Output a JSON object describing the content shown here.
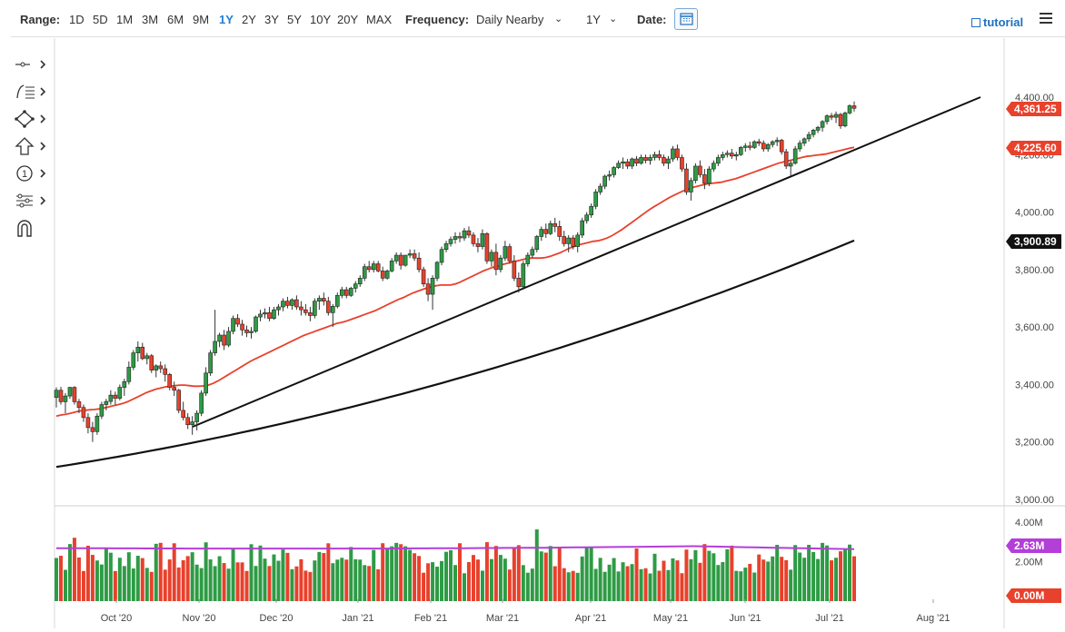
{
  "toolbar": {
    "range_label": "Range:",
    "ranges": [
      "1D",
      "5D",
      "1M",
      "3M",
      "6M",
      "9M",
      "1Y",
      "2Y",
      "3Y",
      "5Y",
      "10Y",
      "20Y",
      "MAX"
    ],
    "active_range": "1Y",
    "frequency_label": "Frequency:",
    "frequency_value": "Daily Nearby",
    "period_value": "1Y",
    "date_label": "Date:",
    "tutorial_label": "tutorial"
  },
  "tools": [
    {
      "name": "crosshair-tool-icon"
    },
    {
      "name": "fibonacci-tool-icon"
    },
    {
      "name": "shapes-tool-icon"
    },
    {
      "name": "arrow-up-tool-icon"
    },
    {
      "name": "annotation-tool-icon",
      "glyph": "1"
    },
    {
      "name": "indicator-settings-icon"
    },
    {
      "name": "magnet-icon"
    }
  ],
  "colors": {
    "up_candle": "#2e9b45",
    "down_candle": "#e8412c",
    "ma_fast": "#e8412c",
    "ma_slow": "#111111",
    "volume_ma": "#b43ed8",
    "price_tag": "#e8412c",
    "dark_tag": "#111111",
    "volume_tag": "#b43ed8"
  },
  "chart_data": {
    "type": "candlestick",
    "x_axis_labels": [
      "Oct '20",
      "Nov '20",
      "Dec '20",
      "Jan '21",
      "Feb '21",
      "Mar '21",
      "Apr '21",
      "May '21",
      "Jun '21",
      "Jul '21",
      "Aug '21"
    ],
    "y_axis_labels": [
      "4,400.00",
      "4,200.00",
      "4,000.00",
      "3,800.00",
      "3,600.00",
      "3,400.00",
      "3,200.00",
      "3,000.00"
    ],
    "y_range": [
      3000,
      4400
    ],
    "ohlc": [
      [
        3355,
        3390,
        3320,
        3380
      ],
      [
        3380,
        3392,
        3330,
        3340
      ],
      [
        3340,
        3370,
        3300,
        3360
      ],
      [
        3360,
        3392,
        3350,
        3390
      ],
      [
        3390,
        3394,
        3330,
        3340
      ],
      [
        3340,
        3350,
        3300,
        3320
      ],
      [
        3320,
        3330,
        3270,
        3285
      ],
      [
        3285,
        3300,
        3230,
        3250
      ],
      [
        3250,
        3270,
        3200,
        3236
      ],
      [
        3236,
        3300,
        3225,
        3290
      ],
      [
        3290,
        3340,
        3280,
        3330
      ],
      [
        3330,
        3350,
        3310,
        3341
      ],
      [
        3341,
        3380,
        3330,
        3363
      ],
      [
        3363,
        3375,
        3330,
        3352
      ],
      [
        3352,
        3400,
        3345,
        3390
      ],
      [
        3390,
        3420,
        3360,
        3410
      ],
      [
        3410,
        3480,
        3400,
        3460
      ],
      [
        3460,
        3520,
        3450,
        3510
      ],
      [
        3510,
        3550,
        3480,
        3530
      ],
      [
        3530,
        3545,
        3485,
        3490
      ],
      [
        3490,
        3510,
        3470,
        3500
      ],
      [
        3500,
        3506,
        3440,
        3450
      ],
      [
        3450,
        3470,
        3425,
        3465
      ],
      [
        3465,
        3480,
        3440,
        3455
      ],
      [
        3455,
        3470,
        3410,
        3435
      ],
      [
        3435,
        3440,
        3380,
        3390
      ],
      [
        3390,
        3410,
        3360,
        3380
      ],
      [
        3380,
        3385,
        3300,
        3310
      ],
      [
        3310,
        3340,
        3275,
        3285
      ],
      [
        3285,
        3300,
        3245,
        3260
      ],
      [
        3260,
        3290,
        3225,
        3270
      ],
      [
        3270,
        3310,
        3240,
        3300
      ],
      [
        3300,
        3380,
        3290,
        3370
      ],
      [
        3370,
        3460,
        3360,
        3440
      ],
      [
        3440,
        3520,
        3430,
        3510
      ],
      [
        3510,
        3660,
        3500,
        3550
      ],
      [
        3550,
        3580,
        3530,
        3572
      ],
      [
        3572,
        3590,
        3520,
        3537
      ],
      [
        3537,
        3600,
        3530,
        3585
      ],
      [
        3585,
        3640,
        3575,
        3630
      ],
      [
        3630,
        3645,
        3600,
        3610
      ],
      [
        3610,
        3625,
        3570,
        3590
      ],
      [
        3590,
        3605,
        3565,
        3580
      ],
      [
        3580,
        3600,
        3560,
        3585
      ],
      [
        3585,
        3640,
        3580,
        3635
      ],
      [
        3635,
        3660,
        3620,
        3645
      ],
      [
        3645,
        3665,
        3630,
        3650
      ],
      [
        3650,
        3670,
        3620,
        3630
      ],
      [
        3630,
        3670,
        3625,
        3660
      ],
      [
        3660,
        3680,
        3640,
        3670
      ],
      [
        3670,
        3700,
        3655,
        3690
      ],
      [
        3690,
        3705,
        3665,
        3675
      ],
      [
        3675,
        3700,
        3660,
        3695
      ],
      [
        3695,
        3710,
        3660,
        3670
      ],
      [
        3670,
        3690,
        3640,
        3660
      ],
      [
        3660,
        3680,
        3640,
        3650
      ],
      [
        3650,
        3670,
        3620,
        3640
      ],
      [
        3640,
        3700,
        3630,
        3690
      ],
      [
        3690,
        3710,
        3660,
        3700
      ],
      [
        3700,
        3720,
        3675,
        3690
      ],
      [
        3690,
        3705,
        3640,
        3650
      ],
      [
        3650,
        3680,
        3600,
        3672
      ],
      [
        3672,
        3720,
        3665,
        3710
      ],
      [
        3710,
        3740,
        3700,
        3730
      ],
      [
        3730,
        3740,
        3700,
        3710
      ],
      [
        3710,
        3740,
        3705,
        3735
      ],
      [
        3735,
        3760,
        3720,
        3750
      ],
      [
        3750,
        3780,
        3740,
        3770
      ],
      [
        3770,
        3820,
        3760,
        3810
      ],
      [
        3810,
        3830,
        3790,
        3800
      ],
      [
        3800,
        3830,
        3790,
        3820
      ],
      [
        3820,
        3830,
        3790,
        3795
      ],
      [
        3795,
        3810,
        3760,
        3770
      ],
      [
        3770,
        3800,
        3765,
        3795
      ],
      [
        3795,
        3840,
        3790,
        3830
      ],
      [
        3830,
        3860,
        3820,
        3850
      ],
      [
        3850,
        3860,
        3800,
        3815
      ],
      [
        3815,
        3850,
        3810,
        3850
      ],
      [
        3850,
        3870,
        3840,
        3855
      ],
      [
        3855,
        3870,
        3830,
        3840
      ],
      [
        3840,
        3860,
        3790,
        3800
      ],
      [
        3800,
        3810,
        3740,
        3750
      ],
      [
        3750,
        3770,
        3690,
        3714
      ],
      [
        3714,
        3780,
        3660,
        3770
      ],
      [
        3770,
        3830,
        3760,
        3825
      ],
      [
        3825,
        3880,
        3815,
        3870
      ],
      [
        3870,
        3900,
        3860,
        3890
      ],
      [
        3890,
        3915,
        3880,
        3905
      ],
      [
        3905,
        3930,
        3890,
        3915
      ],
      [
        3915,
        3930,
        3895,
        3910
      ],
      [
        3910,
        3945,
        3900,
        3935
      ],
      [
        3935,
        3950,
        3910,
        3920
      ],
      [
        3920,
        3930,
        3880,
        3890
      ],
      [
        3890,
        3910,
        3860,
        3880
      ],
      [
        3880,
        3940,
        3870,
        3925
      ],
      [
        3925,
        3930,
        3820,
        3830
      ],
      [
        3830,
        3870,
        3810,
        3860
      ],
      [
        3860,
        3890,
        3780,
        3800
      ],
      [
        3800,
        3850,
        3790,
        3840
      ],
      [
        3840,
        3900,
        3830,
        3880
      ],
      [
        3880,
        3890,
        3820,
        3830
      ],
      [
        3830,
        3850,
        3760,
        3770
      ],
      [
        3770,
        3790,
        3720,
        3740
      ],
      [
        3740,
        3830,
        3730,
        3820
      ],
      [
        3820,
        3860,
        3810,
        3850
      ],
      [
        3850,
        3880,
        3840,
        3870
      ],
      [
        3870,
        3920,
        3860,
        3915
      ],
      [
        3915,
        3950,
        3900,
        3940
      ],
      [
        3940,
        3960,
        3910,
        3925
      ],
      [
        3925,
        3970,
        3920,
        3960
      ],
      [
        3960,
        3980,
        3930,
        3950
      ],
      [
        3950,
        3970,
        3900,
        3915
      ],
      [
        3915,
        3935,
        3880,
        3890
      ],
      [
        3890,
        3920,
        3860,
        3910
      ],
      [
        3910,
        3920,
        3870,
        3880
      ],
      [
        3880,
        3930,
        3860,
        3920
      ],
      [
        3920,
        3980,
        3910,
        3970
      ],
      [
        3970,
        4000,
        3960,
        3990
      ],
      [
        3990,
        4030,
        3980,
        4020
      ],
      [
        4020,
        4080,
        4010,
        4070
      ],
      [
        4070,
        4100,
        4060,
        4090
      ],
      [
        4090,
        4130,
        4080,
        4125
      ],
      [
        4125,
        4145,
        4110,
        4130
      ],
      [
        4130,
        4160,
        4120,
        4155
      ],
      [
        4155,
        4180,
        4150,
        4170
      ],
      [
        4170,
        4190,
        4150,
        4175
      ],
      [
        4175,
        4185,
        4150,
        4160
      ],
      [
        4160,
        4190,
        4150,
        4185
      ],
      [
        4185,
        4195,
        4160,
        4170
      ],
      [
        4170,
        4200,
        4165,
        4190
      ],
      [
        4190,
        4200,
        4170,
        4180
      ],
      [
        4180,
        4200,
        4165,
        4190
      ],
      [
        4190,
        4210,
        4180,
        4200
      ],
      [
        4200,
        4215,
        4180,
        4190
      ],
      [
        4190,
        4200,
        4160,
        4170
      ],
      [
        4170,
        4195,
        4150,
        4185
      ],
      [
        4185,
        4230,
        4175,
        4220
      ],
      [
        4220,
        4235,
        4180,
        4190
      ],
      [
        4190,
        4200,
        4140,
        4150
      ],
      [
        4150,
        4170,
        4060,
        4070
      ],
      [
        4070,
        4120,
        4040,
        4110
      ],
      [
        4110,
        4170,
        4100,
        4160
      ],
      [
        4160,
        4180,
        4120,
        4130
      ],
      [
        4130,
        4150,
        4080,
        4100
      ],
      [
        4100,
        4160,
        4090,
        4150
      ],
      [
        4150,
        4180,
        4140,
        4170
      ],
      [
        4170,
        4200,
        4160,
        4190
      ],
      [
        4190,
        4210,
        4180,
        4200
      ],
      [
        4200,
        4215,
        4190,
        4205
      ],
      [
        4205,
        4220,
        4185,
        4195
      ],
      [
        4195,
        4210,
        4180,
        4200
      ],
      [
        4200,
        4230,
        4195,
        4225
      ],
      [
        4225,
        4240,
        4210,
        4230
      ],
      [
        4230,
        4245,
        4215,
        4225
      ],
      [
        4225,
        4250,
        4220,
        4245
      ],
      [
        4245,
        4255,
        4230,
        4240
      ],
      [
        4240,
        4250,
        4210,
        4220
      ],
      [
        4220,
        4240,
        4210,
        4235
      ],
      [
        4235,
        4250,
        4225,
        4245
      ],
      [
        4245,
        4260,
        4230,
        4250
      ],
      [
        4250,
        4255,
        4200,
        4210
      ],
      [
        4210,
        4220,
        4150,
        4160
      ],
      [
        4160,
        4180,
        4125,
        4170
      ],
      [
        4170,
        4230,
        4165,
        4220
      ],
      [
        4220,
        4250,
        4210,
        4240
      ],
      [
        4240,
        4260,
        4230,
        4255
      ],
      [
        4255,
        4280,
        4245,
        4270
      ],
      [
        4270,
        4290,
        4260,
        4285
      ],
      [
        4285,
        4300,
        4275,
        4295
      ],
      [
        4295,
        4320,
        4280,
        4315
      ],
      [
        4315,
        4340,
        4305,
        4335
      ],
      [
        4335,
        4345,
        4320,
        4330
      ],
      [
        4330,
        4350,
        4310,
        4340
      ],
      [
        4340,
        4345,
        4290,
        4300
      ],
      [
        4300,
        4350,
        4295,
        4345
      ],
      [
        4345,
        4375,
        4340,
        4370
      ],
      [
        4370,
        4385,
        4350,
        4361.25
      ]
    ],
    "ma_fast": [
      3290,
      3294,
      3296,
      3300,
      3304,
      3308,
      3310,
      3312,
      3313,
      3315,
      3318,
      3322,
      3326,
      3330,
      3334,
      3340,
      3348,
      3356,
      3364,
      3372,
      3378,
      3384,
      3388,
      3392,
      3394,
      3396,
      3398,
      3398,
      3396,
      3394,
      3394,
      3395,
      3398,
      3404,
      3412,
      3422,
      3432,
      3442,
      3452,
      3462,
      3472,
      3482,
      3490,
      3498,
      3506,
      3514,
      3522,
      3530,
      3538,
      3546,
      3554,
      3562,
      3570,
      3576,
      3582,
      3588,
      3594,
      3600,
      3606,
      3612,
      3616,
      3620,
      3626,
      3632,
      3638,
      3644,
      3650,
      3656,
      3664,
      3672,
      3680,
      3688,
      3696,
      3702,
      3710,
      3718,
      3724,
      3730,
      3736,
      3740,
      3744,
      3746,
      3746,
      3746,
      3750,
      3756,
      3764,
      3772,
      3780,
      3788,
      3796,
      3802,
      3808,
      3812,
      3818,
      3822,
      3826,
      3830,
      3834,
      3838,
      3840,
      3840,
      3840,
      3842,
      3846,
      3852,
      3858,
      3866,
      3874,
      3880,
      3886,
      3890,
      3894,
      3898,
      3900,
      3904,
      3910,
      3918,
      3928,
      3938,
      3950,
      3962,
      3974,
      3986,
      3998,
      4010,
      4020,
      4030,
      4040,
      4050,
      4058,
      4066,
      4074,
      4080,
      4086,
      4090,
      4094,
      4098,
      4100,
      4102,
      4104,
      4108,
      4112,
      4116,
      4122,
      4128,
      4134,
      4140,
      4146,
      4152,
      4158,
      4164,
      4170,
      4174,
      4178,
      4182,
      4186,
      4190,
      4194,
      4196,
      4198,
      4200,
      4202,
      4206,
      4210,
      4214,
      4218,
      4222,
      4225.6
    ],
    "volume_ma": [
      2.68,
      2.66,
      2.66,
      2.7,
      2.78,
      2.63
    ],
    "volume_axis_labels": [
      "4.00M",
      "2.00M"
    ],
    "tags": {
      "last_price": "4,361.25",
      "ma_fast": "4,225.60",
      "ma_slow": "3,900.89",
      "volume_ma": "2.63M",
      "volume_zero": "0.00M"
    }
  }
}
